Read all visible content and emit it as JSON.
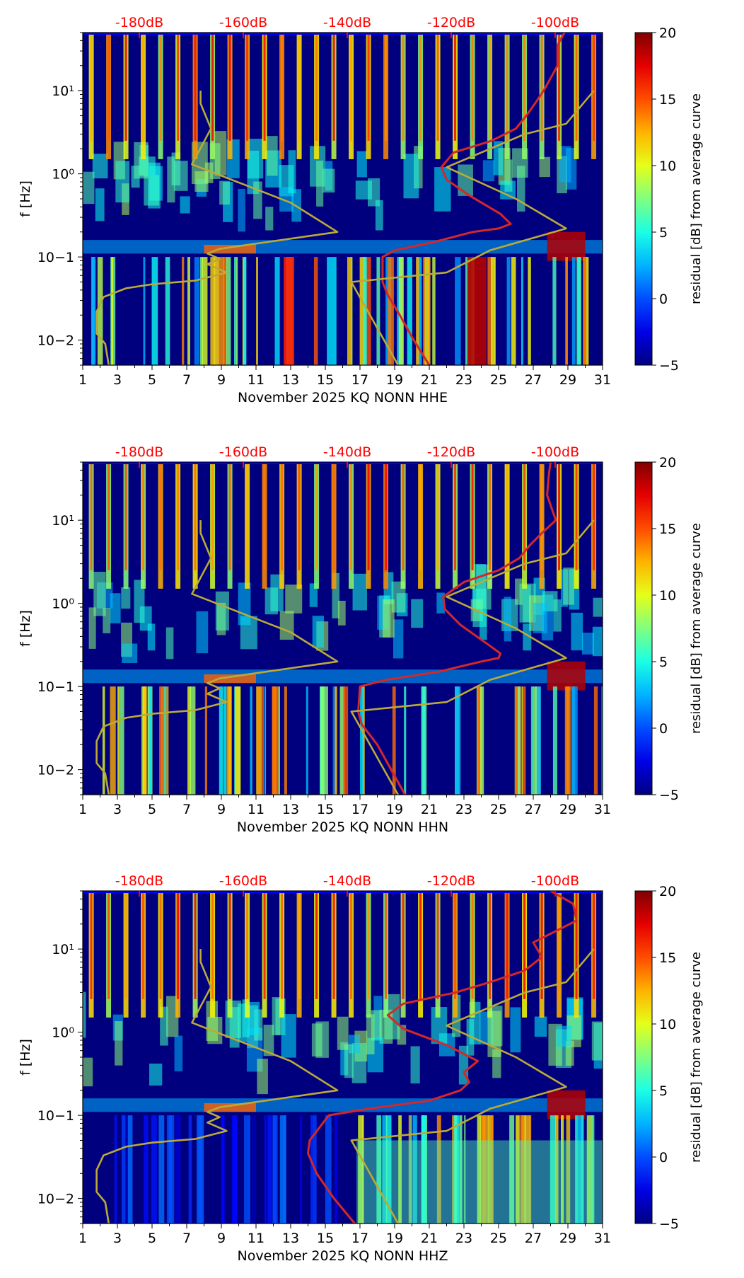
{
  "chart_data": [
    {
      "type": "heatmap",
      "channel": "HHE",
      "xlabel": "November 2025 KQ NONN  HHE",
      "ylabel": "f [Hz]",
      "colorbar_label": "residual [dB] from average curve",
      "x_ticks": [
        1,
        3,
        5,
        7,
        9,
        11,
        13,
        15,
        17,
        19,
        21,
        23,
        25,
        27,
        29,
        31
      ],
      "xlim": [
        1,
        31
      ],
      "ylim": [
        0.005,
        50
      ],
      "yscale": "log",
      "y_tick_labels": [
        "10−2",
        "10−1",
        "10⁰",
        "10¹"
      ],
      "y_tick_values": [
        0.01,
        0.1,
        1,
        10
      ],
      "colorbar_ticks": [
        "−5",
        "0",
        "5",
        "10",
        "15",
        "20"
      ],
      "clim": [
        -5,
        20
      ],
      "colormap": "jet",
      "top_db_labels": [
        "-180dB",
        "-160dB",
        "-140dB",
        "-120dB",
        "-100dB"
      ],
      "top_db_color": "#ff0000",
      "series": [
        {
          "name": "",
          "color": "#d62728",
          "x": [
            21.0,
            20.1,
            19.3,
            18.6,
            18.3,
            18.3,
            19.0,
            21.2,
            23.5,
            25.0,
            25.7,
            25.1,
            23.3,
            22.0,
            21.7,
            22.4,
            24.6,
            26.0,
            26.6,
            27.1,
            27.6,
            28.4,
            28.4,
            28.8
          ],
          "y": [
            0.005,
            0.01,
            0.02,
            0.035,
            0.05,
            0.1,
            0.12,
            0.15,
            0.2,
            0.22,
            0.25,
            0.33,
            0.55,
            0.85,
            1.2,
            1.8,
            2.5,
            3.5,
            5,
            7,
            10,
            20,
            35,
            50
          ]
        },
        {
          "name": "",
          "color": "#bcaa35",
          "x": [
            2.5,
            2.3,
            1.8,
            1.8,
            2.2,
            3.5,
            5.0,
            7.5,
            9.3,
            8.2,
            8.9,
            8.2,
            8.9,
            15.7,
            13.0,
            7.3,
            8.4,
            7.8,
            7.8
          ],
          "y": [
            0.005,
            0.009,
            0.012,
            0.022,
            0.033,
            0.042,
            0.047,
            0.052,
            0.065,
            0.082,
            0.095,
            0.11,
            0.125,
            0.2,
            0.45,
            1.3,
            3.5,
            7.0,
            10.0
          ]
        },
        {
          "name": "",
          "color": "#bcaa35",
          "x": [
            19.2,
            16.5,
            22.0,
            24.5,
            28.9,
            26.0,
            22.0,
            26.5,
            28.9,
            30.5
          ],
          "y": [
            0.005,
            0.05,
            0.065,
            0.12,
            0.22,
            0.5,
            1.2,
            3.0,
            4.0,
            10.0
          ]
        }
      ]
    },
    {
      "type": "heatmap",
      "channel": "HHN",
      "xlabel": "November 2025 KQ NONN  HHN",
      "ylabel": "f [Hz]",
      "colorbar_label": "residual [dB] from average curve",
      "x_ticks": [
        1,
        3,
        5,
        7,
        9,
        11,
        13,
        15,
        17,
        19,
        21,
        23,
        25,
        27,
        29,
        31
      ],
      "xlim": [
        1,
        31
      ],
      "ylim": [
        0.005,
        50
      ],
      "yscale": "log",
      "y_tick_labels": [
        "10−2",
        "10−1",
        "10⁰",
        "10¹"
      ],
      "y_tick_values": [
        0.01,
        0.1,
        1,
        10
      ],
      "colorbar_ticks": [
        "−5",
        "0",
        "5",
        "10",
        "15",
        "20"
      ],
      "clim": [
        -5,
        20
      ],
      "colormap": "jet",
      "top_db_labels": [
        "-180dB",
        "-160dB",
        "-140dB",
        "-120dB",
        "-100dB"
      ],
      "top_db_color": "#ff0000",
      "series": [
        {
          "name": "",
          "color": "#d62728",
          "x": [
            19.6,
            18.8,
            18.0,
            17.1,
            16.9,
            17.0,
            18.5,
            21.5,
            24.0,
            25.0,
            25.1,
            24.3,
            22.8,
            21.9,
            21.8,
            23.0,
            25.0,
            26.2,
            26.8,
            27.5,
            28.3,
            27.8,
            27.9,
            28.0
          ],
          "y": [
            0.005,
            0.01,
            0.02,
            0.035,
            0.05,
            0.1,
            0.12,
            0.15,
            0.2,
            0.22,
            0.25,
            0.33,
            0.55,
            0.85,
            1.2,
            1.8,
            2.5,
            3.5,
            5,
            7,
            10,
            20,
            35,
            50
          ]
        },
        {
          "name": "",
          "color": "#bcaa35",
          "x": [
            2.5,
            2.3,
            1.8,
            1.8,
            2.2,
            3.5,
            5.0,
            7.5,
            9.3,
            8.2,
            8.9,
            8.2,
            8.9,
            15.7,
            13.0,
            7.3,
            8.4,
            7.8,
            7.8
          ],
          "y": [
            0.005,
            0.009,
            0.012,
            0.022,
            0.033,
            0.042,
            0.047,
            0.052,
            0.065,
            0.082,
            0.095,
            0.11,
            0.125,
            0.2,
            0.45,
            1.3,
            3.5,
            7.0,
            10.0
          ]
        },
        {
          "name": "",
          "color": "#bcaa35",
          "x": [
            19.2,
            16.5,
            22.0,
            24.5,
            28.9,
            26.0,
            22.0,
            26.5,
            28.9,
            30.5
          ],
          "y": [
            0.005,
            0.05,
            0.065,
            0.12,
            0.22,
            0.5,
            1.2,
            3.0,
            4.0,
            10.0
          ]
        }
      ]
    },
    {
      "type": "heatmap",
      "channel": "HHZ",
      "xlabel": "November 2025 KQ NONN  HHZ",
      "ylabel": "f [Hz]",
      "colorbar_label": "residual [dB] from average curve",
      "x_ticks": [
        1,
        3,
        5,
        7,
        9,
        11,
        13,
        15,
        17,
        19,
        21,
        23,
        25,
        27,
        29,
        31
      ],
      "xlim": [
        1,
        31
      ],
      "ylim": [
        0.005,
        50
      ],
      "yscale": "log",
      "y_tick_labels": [
        "10−2",
        "10−1",
        "10⁰",
        "10¹"
      ],
      "y_tick_values": [
        0.01,
        0.1,
        1,
        10
      ],
      "colorbar_ticks": [
        "−5",
        "0",
        "5",
        "10",
        "15",
        "20"
      ],
      "clim": [
        -5,
        20
      ],
      "colormap": "jet",
      "top_db_labels": [
        "-180dB",
        "-160dB",
        "-140dB",
        "-120dB",
        "-100dB"
      ],
      "top_db_color": "#ff0000",
      "series": [
        {
          "name": "",
          "color": "#d62728",
          "x": [
            16.7,
            15.5,
            14.5,
            14.0,
            14.1,
            15.2,
            17.5,
            21.0,
            22.8,
            23.3,
            23.0,
            23.8,
            22.0,
            19.5,
            18.6,
            19.5,
            22.5,
            24.5,
            26.5,
            27.5,
            27.0,
            29.5,
            29.3,
            28.0
          ],
          "y": [
            0.005,
            0.01,
            0.02,
            0.035,
            0.05,
            0.1,
            0.12,
            0.15,
            0.2,
            0.25,
            0.33,
            0.45,
            0.7,
            1.1,
            1.6,
            2.2,
            3.0,
            4.0,
            5.5,
            8.0,
            12.0,
            22.0,
            35.0,
            50.0
          ]
        },
        {
          "name": "",
          "color": "#bcaa35",
          "x": [
            2.5,
            2.3,
            1.8,
            1.8,
            2.2,
            3.5,
            5.0,
            7.5,
            9.3,
            8.2,
            8.9,
            8.2,
            8.9,
            15.7,
            13.0,
            7.3,
            8.4,
            7.8,
            7.8
          ],
          "y": [
            0.005,
            0.009,
            0.012,
            0.022,
            0.033,
            0.042,
            0.047,
            0.052,
            0.065,
            0.082,
            0.095,
            0.11,
            0.125,
            0.2,
            0.45,
            1.3,
            3.5,
            7.0,
            10.0
          ]
        },
        {
          "name": "",
          "color": "#bcaa35",
          "x": [
            19.2,
            16.5,
            22.0,
            24.5,
            28.9,
            26.0,
            22.0,
            26.5,
            28.9,
            30.5
          ],
          "y": [
            0.005,
            0.05,
            0.065,
            0.12,
            0.22,
            0.5,
            1.2,
            3.0,
            4.0,
            10.0
          ]
        }
      ]
    }
  ]
}
